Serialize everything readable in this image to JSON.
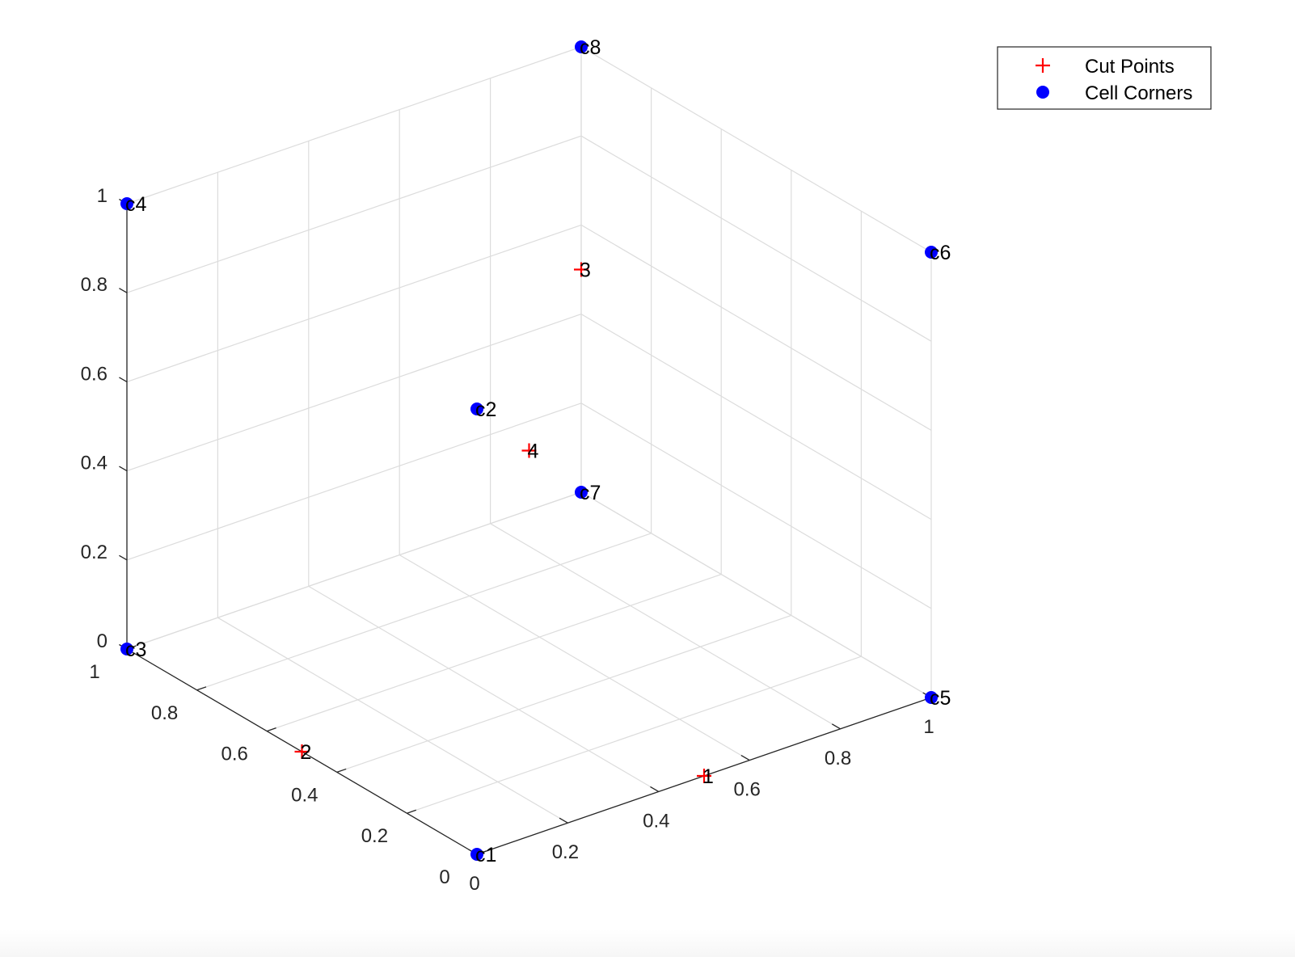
{
  "chart_data": {
    "type": "scatter",
    "projection": "3d",
    "xlim": [
      0,
      1
    ],
    "ylim": [
      0,
      1
    ],
    "zlim": [
      0,
      1
    ],
    "grid": true,
    "legend_placement": "top-right",
    "x_ticks": [
      "0",
      "0.2",
      "0.4",
      "0.6",
      "0.8",
      "1"
    ],
    "y_ticks": [
      "0",
      "0.2",
      "0.4",
      "0.6",
      "0.8",
      "1"
    ],
    "z_ticks": [
      "0",
      "0.2",
      "0.4",
      "0.6",
      "0.8",
      "1"
    ],
    "series": [
      {
        "name": "Cut Points",
        "marker": "plus",
        "color": "#ff0000",
        "points": [
          {
            "label": "1",
            "x": 0.5,
            "y": 0,
            "z": 0
          },
          {
            "label": "2",
            "x": 0,
            "y": 0.5,
            "z": 0
          },
          {
            "label": "3",
            "x": 1,
            "y": 1,
            "z": 0.5
          },
          {
            "label": "4",
            "x": 0.5,
            "y": 0.5,
            "z": 0.5
          }
        ]
      },
      {
        "name": "Cell Corners",
        "marker": "circle",
        "color": "#0000ff",
        "points": [
          {
            "label": "c1",
            "x": 0,
            "y": 0,
            "z": 0
          },
          {
            "label": "c2",
            "x": 0,
            "y": 0,
            "z": 1
          },
          {
            "label": "c3",
            "x": 0,
            "y": 1,
            "z": 0
          },
          {
            "label": "c4",
            "x": 0,
            "y": 1,
            "z": 1
          },
          {
            "label": "c5",
            "x": 1,
            "y": 0,
            "z": 0
          },
          {
            "label": "c6",
            "x": 1,
            "y": 0,
            "z": 1
          },
          {
            "label": "c7",
            "x": 1,
            "y": 1,
            "z": 0
          },
          {
            "label": "c8",
            "x": 1,
            "y": 1,
            "z": 1
          }
        ]
      }
    ]
  }
}
